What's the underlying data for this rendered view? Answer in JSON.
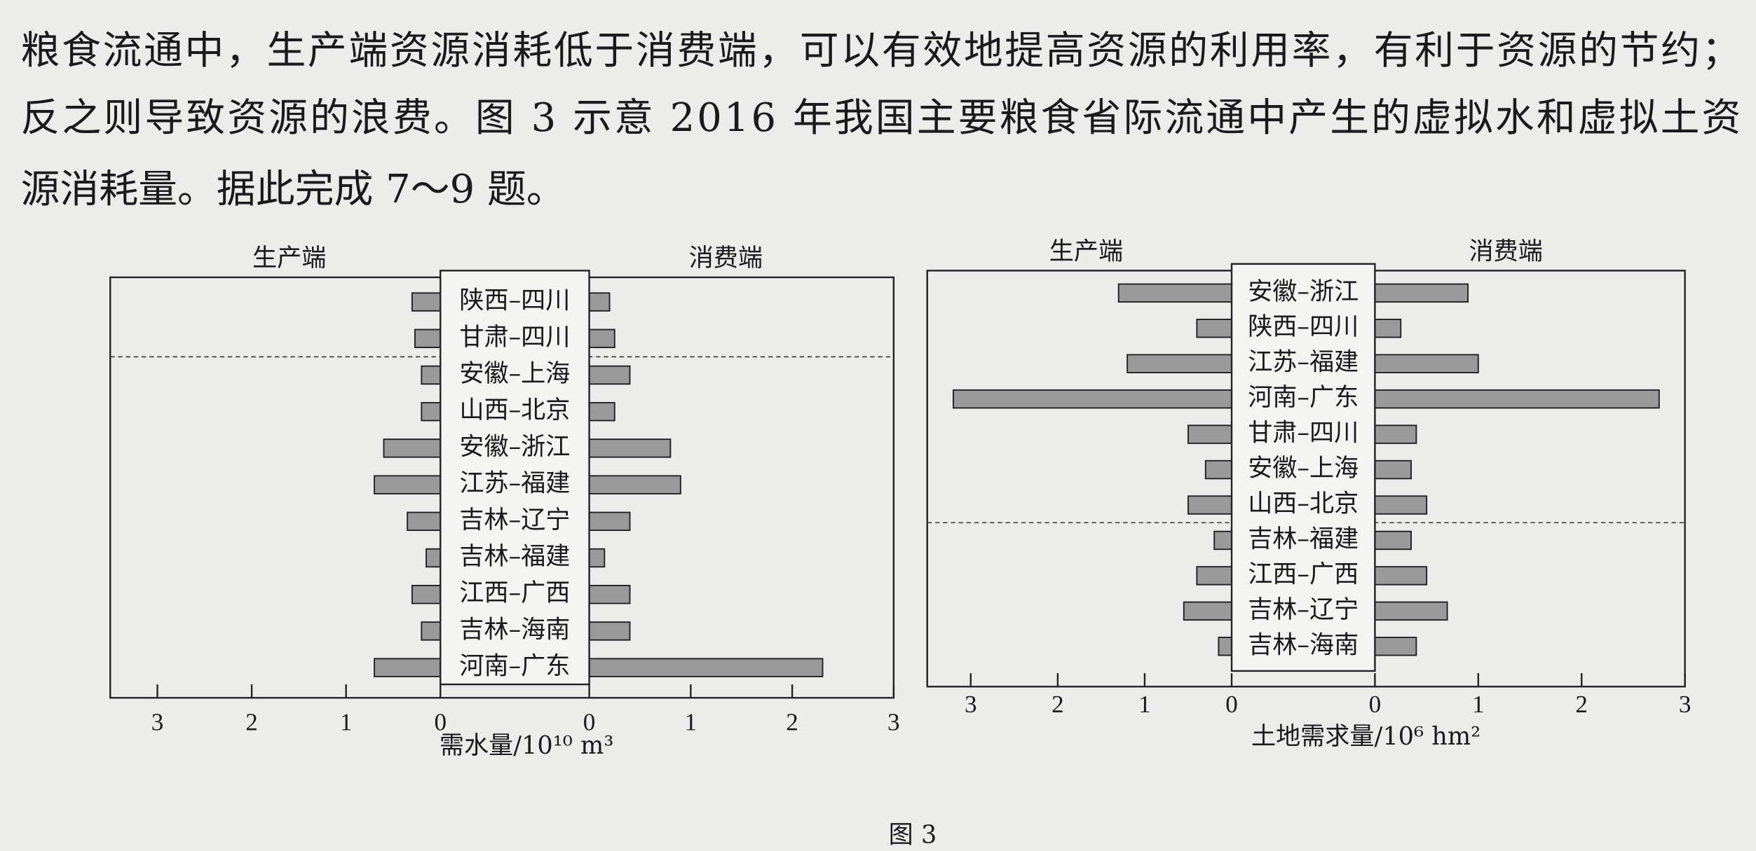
{
  "paragraph": [
    "粮食流通中，生产端资源消耗低于消费端，可以有效地提高资源的利用率，有利于资源的节约；",
    "反之则导致资源的浪费。图 3 示意 2016 年我国主要粮食省际流通中产生的虚拟水和虚拟土资",
    "源消耗量。据此完成 7～9 题。"
  ],
  "caption": "图 3",
  "chart_data": [
    {
      "type": "butterfly_bar",
      "x_label": "需水量/10¹⁰ m³",
      "dashed_line_after": 1,
      "categories": [
        "陕西–四川",
        "甘肃–四川",
        "安徽–上海",
        "山西–北京",
        "安徽–浙江",
        "江苏–福建",
        "吉林–辽宁",
        "吉林–福建",
        "江西–广西",
        "吉林–海南",
        "河南–广东"
      ],
      "series": [
        {
          "name": "生产端",
          "color": "#9a9a9a",
          "xlim": [
            0,
            3.5
          ],
          "xticks": [
            0,
            1,
            2,
            3
          ],
          "values": [
            0.3,
            0.27,
            0.2,
            0.2,
            0.6,
            0.7,
            0.35,
            0.15,
            0.3,
            0.2,
            0.7
          ]
        },
        {
          "name": "消费端",
          "color": "#9a9a9a",
          "xlim": [
            0,
            3
          ],
          "xticks": [
            0,
            1,
            2,
            3
          ],
          "values": [
            0.2,
            0.25,
            0.4,
            0.25,
            0.8,
            0.9,
            0.4,
            0.15,
            0.4,
            0.4,
            2.3
          ]
        }
      ]
    },
    {
      "type": "butterfly_bar",
      "x_label": "土地需求量/10⁶ hm²",
      "dashed_line_after": 6,
      "categories": [
        "安徽–浙江",
        "陕西–四川",
        "江苏–福建",
        "河南–广东",
        "甘肃–四川",
        "安徽–上海",
        "山西–北京",
        "吉林–福建",
        "江西–广西",
        "吉林–辽宁",
        "吉林–海南"
      ],
      "series": [
        {
          "name": "生产端",
          "color": "#9a9a9a",
          "xlim": [
            0,
            3.5
          ],
          "xticks": [
            0,
            1,
            2,
            3
          ],
          "values": [
            1.3,
            0.4,
            1.2,
            3.2,
            0.5,
            0.3,
            0.5,
            0.2,
            0.4,
            0.55,
            0.15
          ]
        },
        {
          "name": "消费端",
          "color": "#9a9a9a",
          "xlim": [
            0,
            3
          ],
          "xticks": [
            0,
            1,
            2,
            3
          ],
          "values": [
            0.9,
            0.25,
            1.0,
            2.75,
            0.4,
            0.35,
            0.5,
            0.35,
            0.5,
            0.7,
            0.4
          ]
        }
      ]
    }
  ]
}
